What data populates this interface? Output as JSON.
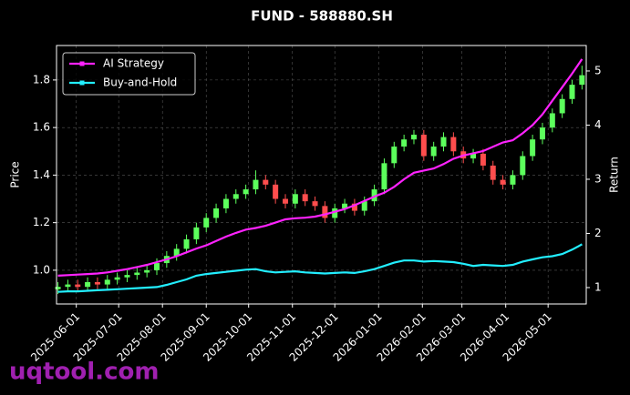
{
  "chart_data": {
    "type": "candlestick",
    "title": "FUND - 588880.SH",
    "watermark": "uqtool.com",
    "y_label": "Price",
    "y2_label": "Return",
    "grid": true,
    "legend": "upper left",
    "up_color": "#5cff5c",
    "down_color": "#ff4d4d",
    "xlim": [
      "2025-05-18",
      "2026-05-28"
    ],
    "xticks": [
      "2025-06-01",
      "2025-07-01",
      "2025-08-01",
      "2025-09-01",
      "2025-10-01",
      "2025-11-01",
      "2025-12-01",
      "2026-01-01",
      "2026-02-01",
      "2026-03-01",
      "2026-04-01",
      "2026-05-01"
    ],
    "ylim": [
      0.858,
      1.945
    ],
    "yticks": [
      {
        "value": 1,
        "label": "1.0"
      },
      {
        "value": 1.2,
        "label": "1.2"
      },
      {
        "value": 1.4,
        "label": "1.4"
      },
      {
        "value": 1.6,
        "label": "1.6"
      },
      {
        "value": 1.8,
        "label": "1.8"
      }
    ],
    "y2lim": [
      0.697,
      5.47
    ],
    "y2ticks": [
      1,
      2,
      3,
      4,
      5
    ],
    "x": [
      "2025-05-19",
      "2025-05-26",
      "2025-06-02",
      "2025-06-09",
      "2025-06-16",
      "2025-06-23",
      "2025-06-30",
      "2025-07-07",
      "2025-07-14",
      "2025-07-21",
      "2025-07-28",
      "2025-08-04",
      "2025-08-11",
      "2025-08-18",
      "2025-08-25",
      "2025-09-01",
      "2025-09-08",
      "2025-09-15",
      "2025-09-22",
      "2025-09-29",
      "2025-10-06",
      "2025-10-13",
      "2025-10-20",
      "2025-10-27",
      "2025-11-03",
      "2025-11-10",
      "2025-11-17",
      "2025-11-24",
      "2025-12-01",
      "2025-12-08",
      "2025-12-15",
      "2025-12-22",
      "2025-12-29",
      "2026-01-05",
      "2026-01-12",
      "2026-01-19",
      "2026-01-26",
      "2026-02-02",
      "2026-02-09",
      "2026-02-16",
      "2026-02-23",
      "2026-03-02",
      "2026-03-09",
      "2026-03-16",
      "2026-03-23",
      "2026-03-30",
      "2026-04-06",
      "2026-04-13",
      "2026-04-20",
      "2026-04-27",
      "2026-05-04",
      "2026-05-11",
      "2026-05-18",
      "2026-05-25"
    ],
    "open": [
      0.92,
      0.93,
      0.94,
      0.93,
      0.95,
      0.94,
      0.96,
      0.97,
      0.98,
      0.99,
      1.0,
      1.03,
      1.06,
      1.09,
      1.13,
      1.18,
      1.22,
      1.26,
      1.3,
      1.32,
      1.34,
      1.38,
      1.36,
      1.3,
      1.28,
      1.32,
      1.29,
      1.27,
      1.22,
      1.26,
      1.28,
      1.25,
      1.29,
      1.34,
      1.45,
      1.52,
      1.55,
      1.57,
      1.48,
      1.52,
      1.56,
      1.5,
      1.47,
      1.49,
      1.44,
      1.38,
      1.36,
      1.4,
      1.48,
      1.55,
      1.6,
      1.66,
      1.72,
      1.78
    ],
    "high": [
      0.95,
      0.96,
      0.96,
      0.97,
      0.97,
      0.98,
      0.99,
      1.0,
      1.01,
      1.02,
      1.05,
      1.08,
      1.11,
      1.15,
      1.2,
      1.24,
      1.28,
      1.32,
      1.34,
      1.36,
      1.42,
      1.4,
      1.38,
      1.32,
      1.34,
      1.34,
      1.31,
      1.29,
      1.28,
      1.3,
      1.3,
      1.31,
      1.36,
      1.47,
      1.54,
      1.57,
      1.59,
      1.59,
      1.54,
      1.58,
      1.58,
      1.52,
      1.51,
      1.51,
      1.46,
      1.4,
      1.42,
      1.5,
      1.57,
      1.62,
      1.68,
      1.74,
      1.8,
      1.86
    ],
    "low": [
      0.9,
      0.91,
      0.91,
      0.91,
      0.92,
      0.92,
      0.94,
      0.95,
      0.96,
      0.97,
      0.98,
      1.01,
      1.04,
      1.07,
      1.11,
      1.16,
      1.2,
      1.24,
      1.28,
      1.3,
      1.32,
      1.34,
      1.28,
      1.26,
      1.26,
      1.27,
      1.25,
      1.2,
      1.2,
      1.24,
      1.23,
      1.23,
      1.27,
      1.32,
      1.43,
      1.5,
      1.53,
      1.46,
      1.46,
      1.5,
      1.48,
      1.45,
      1.45,
      1.42,
      1.36,
      1.34,
      1.34,
      1.38,
      1.46,
      1.53,
      1.58,
      1.64,
      1.7,
      1.76
    ],
    "close": [
      0.93,
      0.94,
      0.93,
      0.95,
      0.94,
      0.96,
      0.97,
      0.98,
      0.99,
      1.0,
      1.03,
      1.06,
      1.09,
      1.13,
      1.18,
      1.22,
      1.26,
      1.3,
      1.32,
      1.34,
      1.38,
      1.36,
      1.3,
      1.28,
      1.32,
      1.29,
      1.27,
      1.22,
      1.26,
      1.28,
      1.25,
      1.29,
      1.34,
      1.45,
      1.52,
      1.55,
      1.57,
      1.48,
      1.52,
      1.56,
      1.5,
      1.47,
      1.49,
      1.44,
      1.38,
      1.36,
      1.4,
      1.48,
      1.55,
      1.6,
      1.66,
      1.72,
      1.78,
      1.82
    ],
    "series": [
      {
        "name": "AI Strategy",
        "color": "#ff22ff",
        "axis": "y2",
        "values": [
          1.22,
          1.23,
          1.24,
          1.25,
          1.26,
          1.28,
          1.31,
          1.34,
          1.38,
          1.42,
          1.47,
          1.52,
          1.58,
          1.65,
          1.72,
          1.78,
          1.86,
          1.94,
          2.01,
          2.07,
          2.1,
          2.14,
          2.2,
          2.26,
          2.28,
          2.29,
          2.31,
          2.35,
          2.4,
          2.45,
          2.52,
          2.6,
          2.68,
          2.75,
          2.86,
          3.0,
          3.12,
          3.16,
          3.2,
          3.28,
          3.38,
          3.44,
          3.48,
          3.52,
          3.6,
          3.68,
          3.72,
          3.85,
          4.0,
          4.2,
          4.45,
          4.7,
          4.95,
          5.22
        ]
      },
      {
        "name": "Buy-and-Hold",
        "color": "#22eeff",
        "axis": "y2",
        "values": [
          0.92,
          0.93,
          0.93,
          0.94,
          0.95,
          0.96,
          0.97,
          0.98,
          0.99,
          1.0,
          1.01,
          1.05,
          1.1,
          1.15,
          1.22,
          1.25,
          1.27,
          1.29,
          1.31,
          1.33,
          1.34,
          1.3,
          1.28,
          1.29,
          1.3,
          1.28,
          1.27,
          1.26,
          1.27,
          1.28,
          1.27,
          1.3,
          1.34,
          1.4,
          1.46,
          1.5,
          1.5,
          1.48,
          1.49,
          1.48,
          1.47,
          1.44,
          1.4,
          1.42,
          1.41,
          1.4,
          1.42,
          1.48,
          1.52,
          1.56,
          1.58,
          1.62,
          1.7,
          1.8
        ]
      }
    ]
  }
}
